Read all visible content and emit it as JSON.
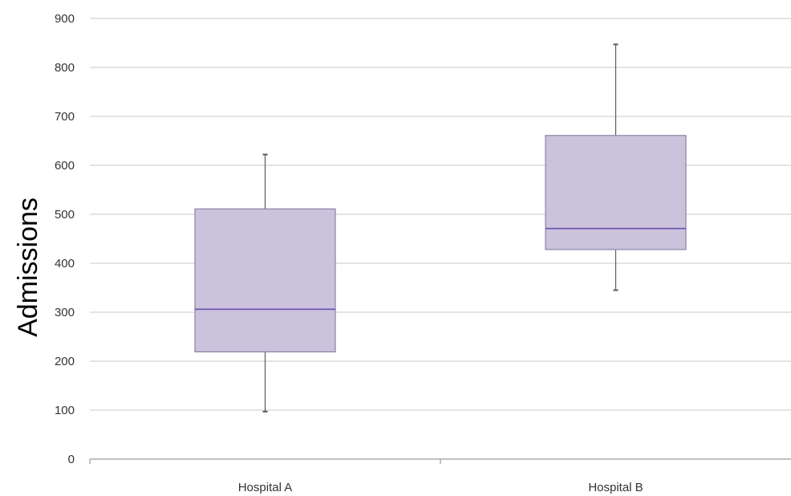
{
  "chart_data": {
    "type": "boxplot",
    "title": "",
    "xlabel": "",
    "ylabel": "Admissions",
    "ylim": [
      0,
      900
    ],
    "y_ticks": [
      "0",
      "100",
      "200",
      "300",
      "400",
      "500",
      "600",
      "700",
      "800",
      "900"
    ],
    "grid": true,
    "categories": [
      "Hospital A",
      "Hospital B"
    ],
    "boxes": [
      {
        "category": "Hospital A",
        "min": 97,
        "q1": 219,
        "median": 306,
        "q3": 511,
        "max": 622
      },
      {
        "category": "Hospital B",
        "min": 345,
        "q1": 428,
        "median": 471,
        "q3": 661,
        "max": 847
      }
    ],
    "colors": {
      "box_fill": "#cbc2dc",
      "box_edge": "#8a82a8",
      "median": "#6a4fb0",
      "whisker": "#5a5a5a",
      "grid": "#d4d4d4",
      "axis": "#9a9a9a"
    }
  }
}
